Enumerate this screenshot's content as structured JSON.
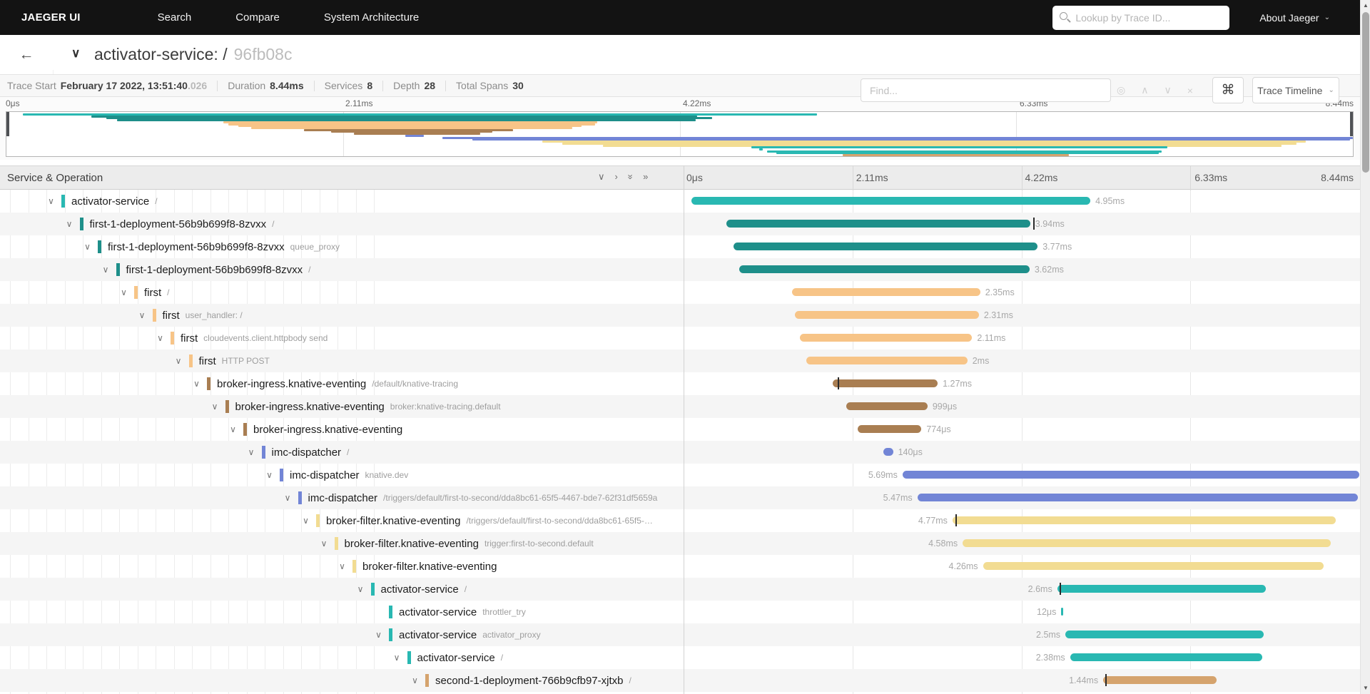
{
  "nav": {
    "brand": "JAEGER UI",
    "items": [
      "Search",
      "Compare",
      "System Architecture"
    ],
    "search_placeholder": "Lookup by Trace ID...",
    "about_label": "About Jaeger"
  },
  "trace_header": {
    "title": "activator-service: /",
    "trace_id_short": "96fb08c",
    "find_placeholder": "Find...",
    "view_select_label": "Trace Timeline"
  },
  "summary": {
    "items": [
      {
        "label": "Trace Start",
        "value": "February 17 2022, 13:51:40",
        "suffix": ".026"
      },
      {
        "label": "Duration",
        "value": "8.44ms"
      },
      {
        "label": "Services",
        "value": "8"
      },
      {
        "label": "Depth",
        "value": "28"
      },
      {
        "label": "Total Spans",
        "value": "30"
      }
    ]
  },
  "timeline": {
    "left_header": "Service & Operation",
    "ticks": [
      "0μs",
      "2.11ms",
      "4.22ms",
      "6.33ms",
      "8.44ms"
    ],
    "grid_pcts": [
      25,
      50,
      75
    ]
  },
  "icons": {
    "back": "←",
    "chevron_down": "∨",
    "caret_down": "⌄",
    "crosshair": "◎",
    "prev_match": "∧",
    "next_match": "∨",
    "clear": "×",
    "command": "⌘",
    "collapse_one": "∨",
    "expand_one": "›",
    "collapse_all": "»",
    "expand_all": "»",
    "grip": "∥",
    "scroll_up": "▲",
    "scroll_down": "▼"
  },
  "service_colors": {
    "activator-service": "#29b8b2",
    "first-1-deployment-56b9b699f8-8zvxx": "#1e8f8a",
    "first": "#f7c487",
    "broker-ingress.knative-eventing": "#a97e52",
    "imc-dispatcher": "#7285d6",
    "broker-filter.knative-eventing": "#f2dc92",
    "second-1-deployment-766b9cfb97-xjtxb": "#d5a36d"
  },
  "rows": [
    {
      "service": "activator-service",
      "operation": "/",
      "depth": 0,
      "leaf": false,
      "start_pct": 1.2,
      "end_pct": 60.2,
      "duration": "4.95ms",
      "label_side": "right",
      "ticks": []
    },
    {
      "service": "first-1-deployment-56b9b699f8-8zvxx",
      "operation": "/",
      "depth": 1,
      "leaf": false,
      "start_pct": 6.3,
      "end_pct": 51.3,
      "duration": "3.94ms",
      "label_side": "right",
      "ticks": [
        51.7
      ]
    },
    {
      "service": "first-1-deployment-56b9b699f8-8zvxx",
      "operation": "queue_proxy",
      "depth": 2,
      "leaf": false,
      "start_pct": 7.4,
      "end_pct": 52.4,
      "duration": "3.77ms",
      "label_side": "right",
      "ticks": []
    },
    {
      "service": "first-1-deployment-56b9b699f8-8zvxx",
      "operation": "/",
      "depth": 3,
      "leaf": false,
      "start_pct": 8.2,
      "end_pct": 51.2,
      "duration": "3.62ms",
      "label_side": "right",
      "ticks": []
    },
    {
      "service": "first",
      "operation": "/",
      "depth": 4,
      "leaf": false,
      "start_pct": 16.1,
      "end_pct": 43.9,
      "duration": "2.35ms",
      "label_side": "right",
      "ticks": []
    },
    {
      "service": "first",
      "operation": "user_handler: /",
      "depth": 5,
      "leaf": false,
      "start_pct": 16.5,
      "end_pct": 43.7,
      "duration": "2.31ms",
      "label_side": "right",
      "ticks": []
    },
    {
      "service": "first",
      "operation": "cloudevents.client.httpbody send",
      "depth": 6,
      "leaf": false,
      "start_pct": 17.2,
      "end_pct": 42.7,
      "duration": "2.11ms",
      "label_side": "right",
      "ticks": []
    },
    {
      "service": "first",
      "operation": "HTTP POST",
      "depth": 7,
      "leaf": false,
      "start_pct": 18.2,
      "end_pct": 42.0,
      "duration": "2ms",
      "label_side": "right",
      "ticks": []
    },
    {
      "service": "broker-ingress.knative-eventing",
      "operation": "/default/knative-tracing",
      "depth": 8,
      "leaf": false,
      "start_pct": 22.1,
      "end_pct": 37.6,
      "duration": "1.27ms",
      "label_side": "right",
      "ticks": [
        22.8
      ]
    },
    {
      "service": "broker-ingress.knative-eventing",
      "operation": "broker:knative-tracing.default",
      "depth": 9,
      "leaf": false,
      "start_pct": 24.1,
      "end_pct": 36.1,
      "duration": "999μs",
      "label_side": "right",
      "ticks": []
    },
    {
      "service": "broker-ingress.knative-eventing",
      "operation": "",
      "depth": 10,
      "leaf": false,
      "start_pct": 25.8,
      "end_pct": 35.2,
      "duration": "774μs",
      "label_side": "right",
      "ticks": []
    },
    {
      "service": "imc-dispatcher",
      "operation": "/",
      "depth": 11,
      "leaf": false,
      "start_pct": 29.6,
      "end_pct": 31.0,
      "duration": "140μs",
      "label_side": "right",
      "ticks": []
    },
    {
      "service": "imc-dispatcher",
      "operation": "knative.dev",
      "depth": 12,
      "leaf": false,
      "start_pct": 32.4,
      "end_pct": 100,
      "duration": "5.69ms",
      "label_side": "left",
      "ticks": []
    },
    {
      "service": "imc-dispatcher",
      "operation": "/triggers/default/first-to-second/dda8bc61-65f5-4467-bde7-62f31df5659a",
      "depth": 13,
      "leaf": false,
      "start_pct": 34.6,
      "end_pct": 99.8,
      "duration": "5.47ms",
      "label_side": "left",
      "ticks": []
    },
    {
      "service": "broker-filter.knative-eventing",
      "operation": "/triggers/default/first-to-second/dda8bc61-65f5-…",
      "depth": 14,
      "leaf": false,
      "start_pct": 39.8,
      "end_pct": 96.5,
      "duration": "4.77ms",
      "label_side": "left",
      "ticks": [
        40.2
      ]
    },
    {
      "service": "broker-filter.knative-eventing",
      "operation": "trigger:first-to-second.default",
      "depth": 15,
      "leaf": false,
      "start_pct": 41.3,
      "end_pct": 95.8,
      "duration": "4.58ms",
      "label_side": "left",
      "ticks": []
    },
    {
      "service": "broker-filter.knative-eventing",
      "operation": "",
      "depth": 16,
      "leaf": false,
      "start_pct": 44.3,
      "end_pct": 94.7,
      "duration": "4.26ms",
      "label_side": "left",
      "ticks": []
    },
    {
      "service": "activator-service",
      "operation": "/",
      "depth": 17,
      "leaf": false,
      "start_pct": 55.3,
      "end_pct": 86.2,
      "duration": "2.6ms",
      "label_side": "left",
      "ticks": [
        55.6
      ]
    },
    {
      "service": "activator-service",
      "operation": "throttler_try",
      "depth": 18,
      "leaf": true,
      "start_pct": 55.9,
      "end_pct": 56.2,
      "duration": "12μs",
      "label_side": "left",
      "ticks": []
    },
    {
      "service": "activator-service",
      "operation": "activator_proxy",
      "depth": 18,
      "leaf": false,
      "start_pct": 56.5,
      "end_pct": 85.8,
      "duration": "2.5ms",
      "label_side": "left",
      "ticks": []
    },
    {
      "service": "activator-service",
      "operation": "/",
      "depth": 19,
      "leaf": false,
      "start_pct": 57.2,
      "end_pct": 85.6,
      "duration": "2.38ms",
      "label_side": "left",
      "ticks": []
    },
    {
      "service": "second-1-deployment-766b9cfb97-xjtxb",
      "operation": "/",
      "depth": 20,
      "leaf": false,
      "start_pct": 62.1,
      "end_pct": 78.9,
      "duration": "1.44ms",
      "label_side": "left",
      "ticks": [
        62.4
      ]
    }
  ]
}
